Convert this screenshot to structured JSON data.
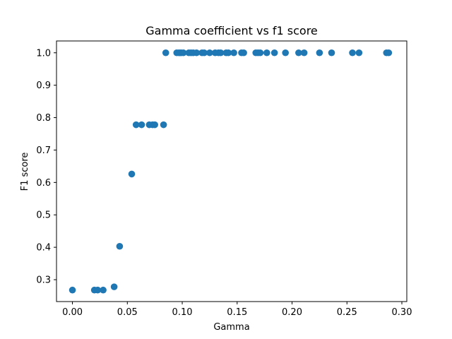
{
  "chart_data": {
    "type": "scatter",
    "title": "Gamma coefficient vs f1 score",
    "xlabel": "Gamma",
    "ylabel": "F1 score",
    "xlim": [
      -0.0145,
      0.3045
    ],
    "ylim": [
      0.2325,
      1.0365
    ],
    "xticks": [
      "0.00",
      "0.05",
      "0.10",
      "0.15",
      "0.20",
      "0.25",
      "0.30"
    ],
    "yticks": [
      "0.3",
      "0.4",
      "0.5",
      "0.6",
      "0.7",
      "0.8",
      "0.9",
      "1.0"
    ],
    "grid": false,
    "marker_color": "#1f77b4",
    "series": [
      {
        "x": [
          0.0,
          0.02,
          0.023,
          0.028,
          0.038,
          0.043,
          0.054,
          0.058,
          0.063,
          0.07,
          0.073,
          0.075,
          0.083,
          0.085,
          0.095,
          0.097,
          0.099,
          0.101,
          0.106,
          0.108,
          0.11,
          0.113,
          0.118,
          0.12,
          0.125,
          0.13,
          0.133,
          0.135,
          0.14,
          0.142,
          0.147,
          0.154,
          0.156,
          0.167,
          0.169,
          0.171,
          0.177,
          0.184,
          0.194,
          0.206,
          0.211,
          0.225,
          0.236,
          0.255,
          0.261,
          0.286,
          0.288
        ],
        "y": [
          0.268,
          0.268,
          0.268,
          0.268,
          0.278,
          0.403,
          0.626,
          0.778,
          0.778,
          0.778,
          0.778,
          0.778,
          0.778,
          1.0,
          1.0,
          1.0,
          1.0,
          1.0,
          1.0,
          1.0,
          1.0,
          1.0,
          1.0,
          1.0,
          1.0,
          1.0,
          1.0,
          1.0,
          1.0,
          1.0,
          1.0,
          1.0,
          1.0,
          1.0,
          1.0,
          1.0,
          1.0,
          1.0,
          1.0,
          1.0,
          1.0,
          1.0,
          1.0,
          1.0,
          1.0,
          1.0,
          1.0
        ]
      }
    ]
  }
}
